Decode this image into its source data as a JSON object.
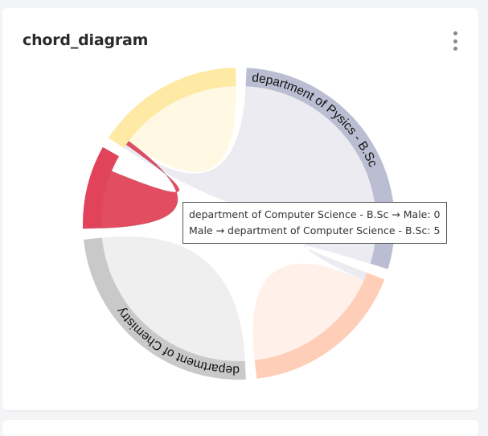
{
  "card": {
    "title": "chord_diagram",
    "menu_icon": "kebab-menu-icon"
  },
  "tooltip": {
    "lines": [
      "department of Computer Science - B.Sc → Male: 0",
      "Male → department of Computer Science - B.Sc: 5"
    ]
  },
  "chart_data": {
    "type": "chord",
    "highlighted_group": 3,
    "groups": [
      {
        "label": "department of Pysics - B.Sc",
        "value": 30,
        "color": "#8e92b4"
      },
      {
        "label": "",
        "value": 18,
        "color": "#fdae8a"
      },
      {
        "label": "department of Chemistry",
        "value": 25,
        "color": "#a5a5a5"
      },
      {
        "label": "",
        "value": 9,
        "color": "#e0435a"
      },
      {
        "label": "",
        "value": 16,
        "color": "#fddc69"
      }
    ],
    "chords": [
      {
        "source": 0,
        "source_value": 27,
        "target": 4,
        "target_value": 0.5
      },
      {
        "source": 0,
        "source_value": 3,
        "target": 1,
        "target_value": 1
      },
      {
        "source": 1,
        "source_value": 15,
        "target": 1,
        "target_value": 2
      },
      {
        "source": 2,
        "source_value": 22,
        "target": 2,
        "target_value": 3
      },
      {
        "source": 3,
        "source_value": 7,
        "target": 4,
        "target_value": 0.5
      },
      {
        "source": 4,
        "source_value": 12,
        "target": 4,
        "target_value": 3
      }
    ]
  }
}
